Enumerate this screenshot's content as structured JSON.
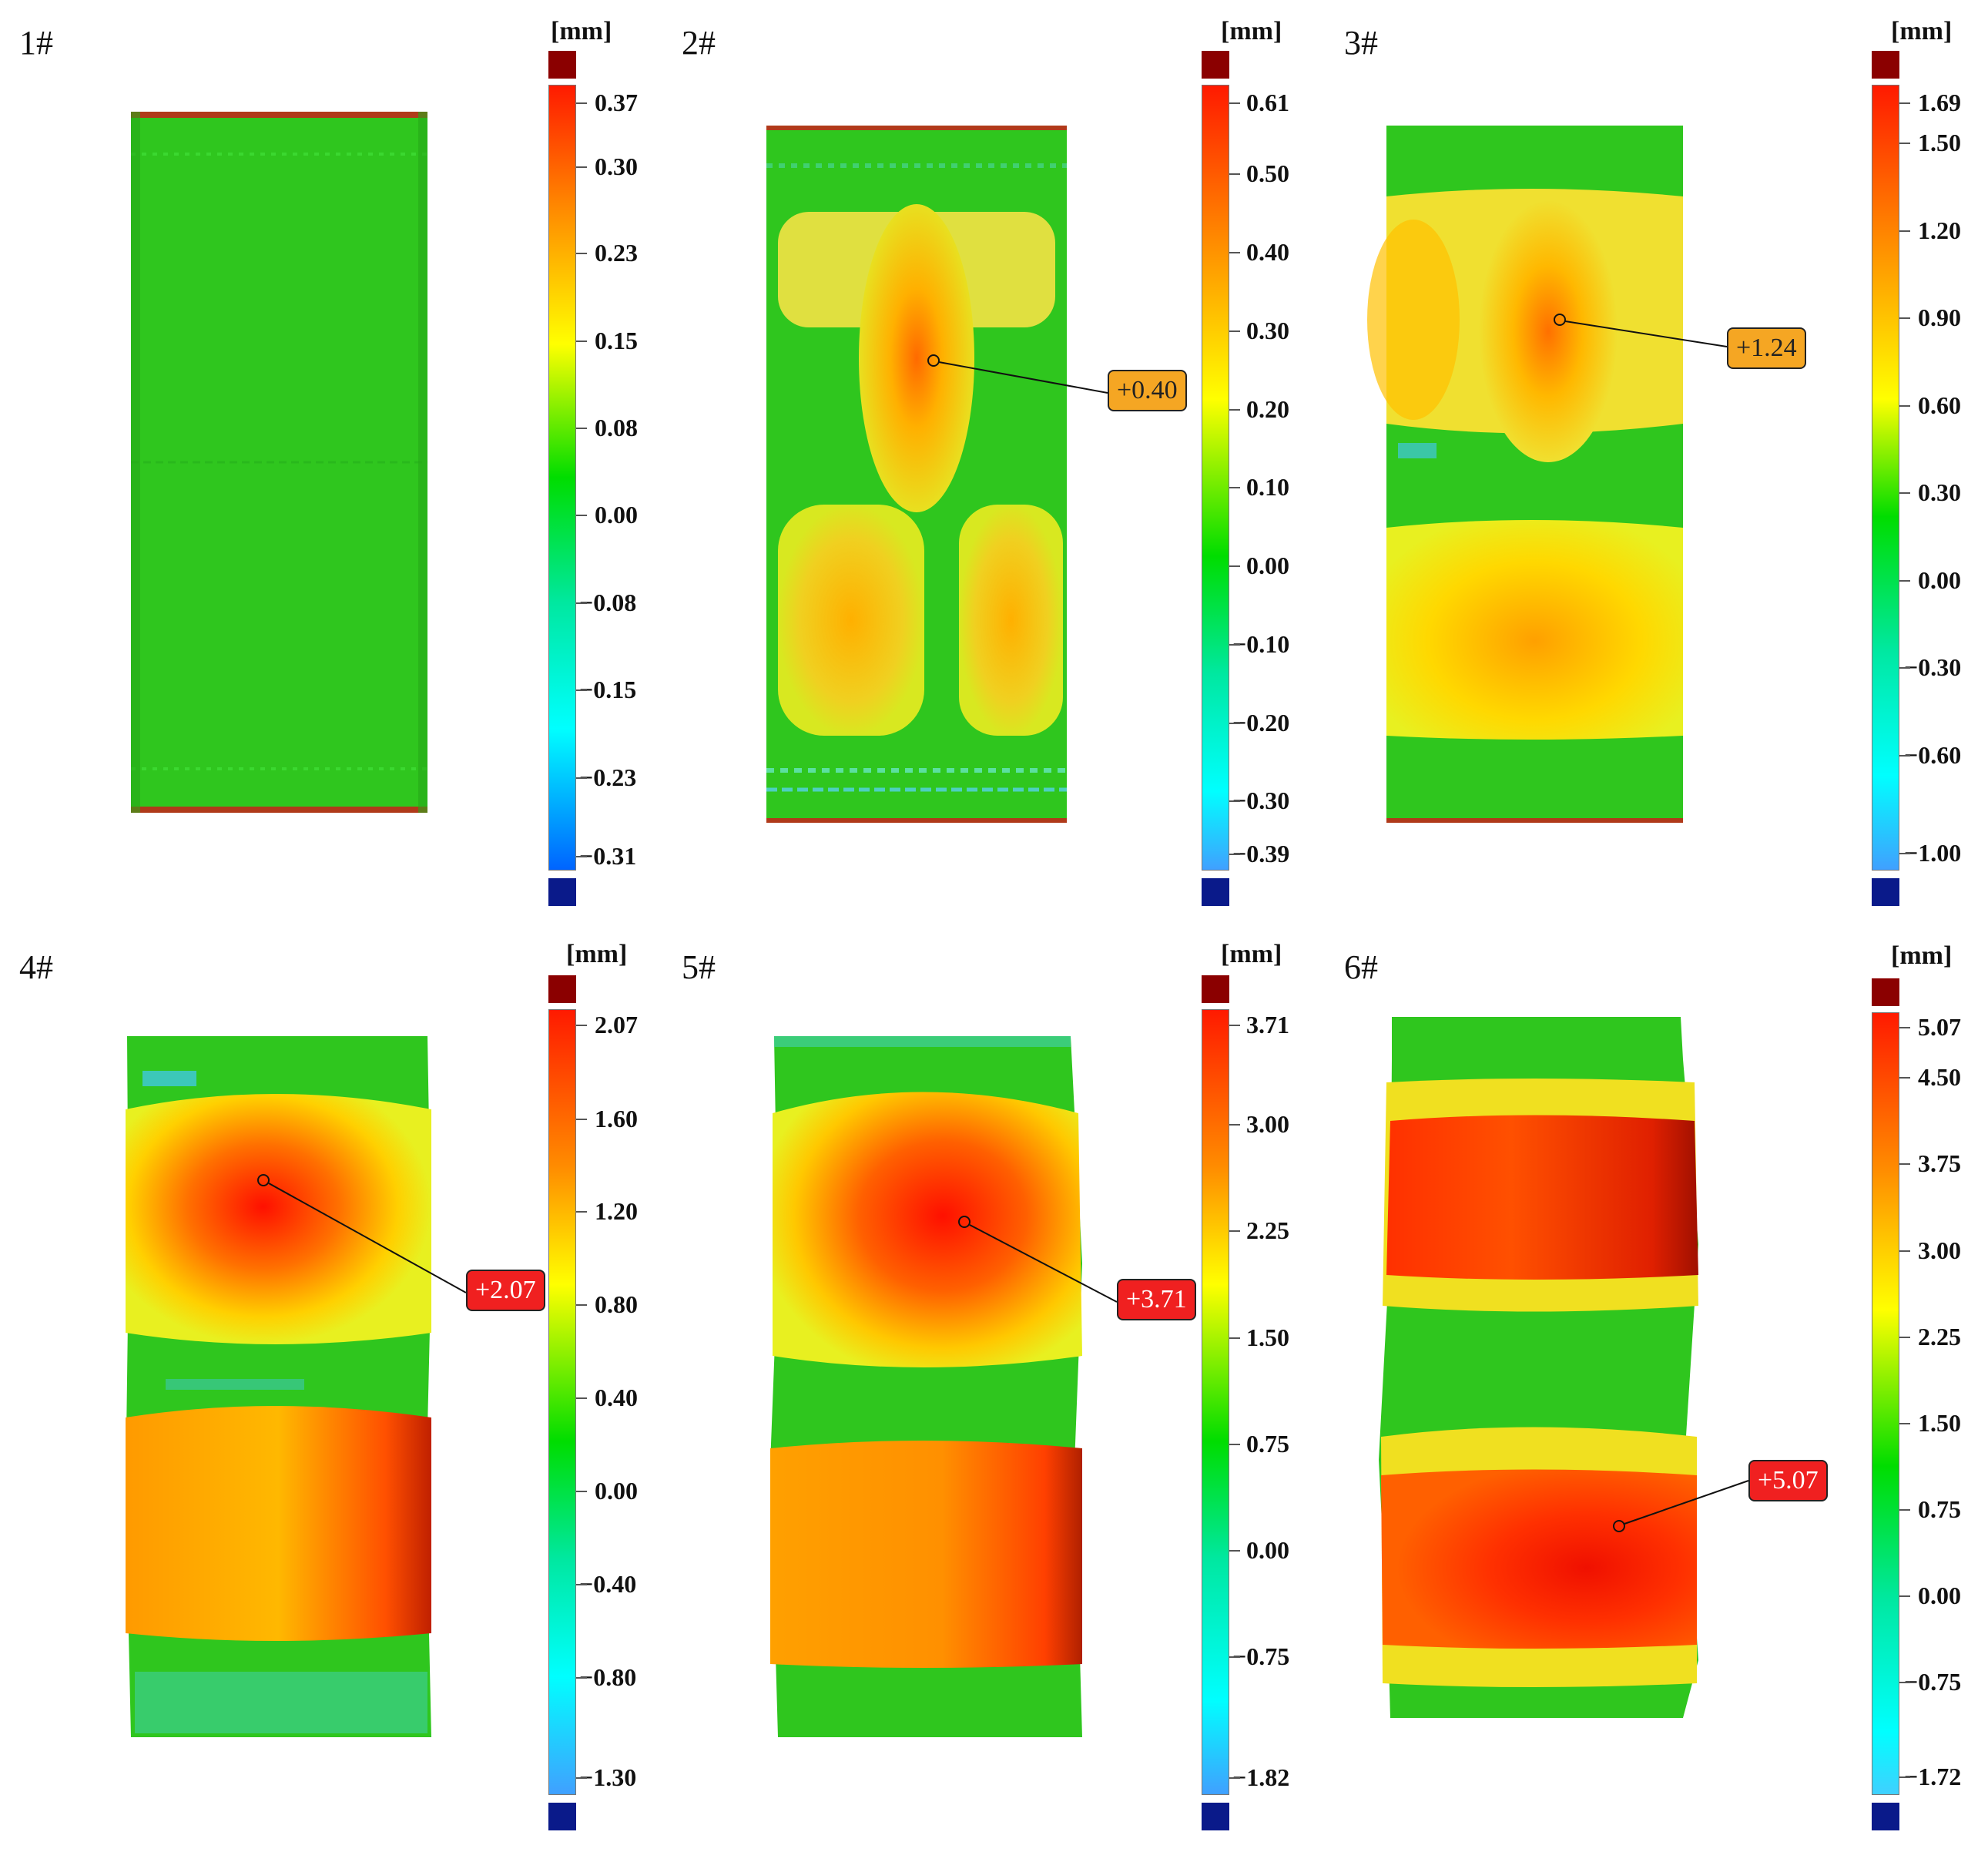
{
  "panels": [
    {
      "label": "1#",
      "unit": "[mm]",
      "ticks": [
        "0.37",
        "0.30",
        "0.23",
        "0.15",
        "0.08",
        "0.00",
        "−0.08",
        "−0.15",
        "−0.23",
        "−0.31"
      ],
      "annotation": null,
      "annotation_color": null
    },
    {
      "label": "2#",
      "unit": "[mm]",
      "ticks": [
        "0.61",
        "0.50",
        "0.40",
        "0.30",
        "0.20",
        "0.10",
        "0.00",
        "−0.10",
        "−0.20",
        "−0.30",
        "−0.39"
      ],
      "annotation": "+0.40",
      "annotation_color": "orange"
    },
    {
      "label": "3#",
      "unit": "[mm]",
      "ticks": [
        "1.69",
        "1.50",
        "1.20",
        "0.90",
        "0.60",
        "0.30",
        "0.00",
        "−0.30",
        "−0.60",
        "−1.00"
      ],
      "annotation": "+1.24",
      "annotation_color": "orange"
    },
    {
      "label": "4#",
      "unit": "[mm]",
      "ticks": [
        "2.07",
        "1.60",
        "1.20",
        "0.80",
        "0.40",
        "0.00",
        "−0.40",
        "−0.80",
        "−1.30"
      ],
      "annotation": "+2.07",
      "annotation_color": "red"
    },
    {
      "label": "5#",
      "unit": "[mm]",
      "ticks": [
        "3.71",
        "3.00",
        "2.25",
        "1.50",
        "0.75",
        "0.00",
        "−0.75",
        "−1.82"
      ],
      "annotation": "+3.71",
      "annotation_color": "red"
    },
    {
      "label": "6#",
      "unit": "[mm]",
      "ticks": [
        "5.07",
        "4.50",
        "3.75",
        "3.00",
        "2.25",
        "1.50",
        "0.75",
        "0.00",
        "−0.75",
        "−1.72"
      ],
      "annotation": "+5.07",
      "annotation_color": "red"
    }
  ],
  "colors": {
    "max_cap": "#8b0000",
    "min_cap": "#0a1a8a",
    "red": "#ff1a00",
    "orange": "#ff8c00",
    "yellow": "#ffff00",
    "green": "#00dd00",
    "cyan": "#00ffff",
    "blue": "#0064ff"
  }
}
